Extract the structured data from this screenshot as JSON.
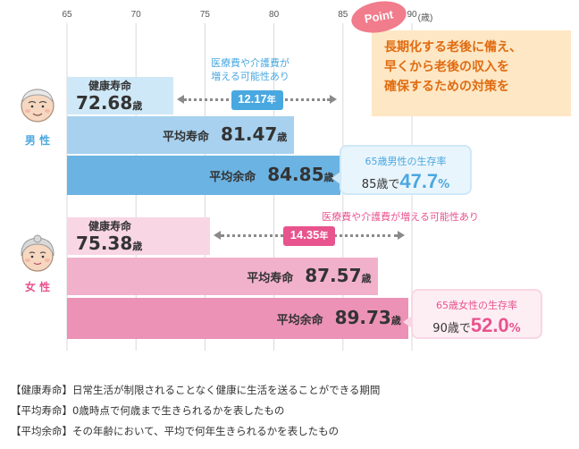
{
  "chart_data": {
    "type": "bar",
    "orientation": "horizontal",
    "x_ticks": [
      "65",
      "70",
      "75",
      "80",
      "85",
      "90"
    ],
    "x_unit": "(歳)",
    "xlim": [
      65,
      90
    ],
    "unit": "歳",
    "groups": [
      {
        "gender": "男 性",
        "bars": [
          {
            "name": "健康寿命",
            "value": 72.68,
            "value_label": "72.68"
          },
          {
            "name": "平均寿命",
            "value": 81.47,
            "value_label": "81.47"
          },
          {
            "name": "平均余命",
            "value": 84.85,
            "value_label": "84.85"
          }
        ],
        "gap_note": [
          "医療費や介護費が",
          "増える可能性あり"
        ],
        "gap": "12.17",
        "gap_unit": "年",
        "survival": {
          "title": "65歳男性の生存率",
          "age_text": "85歳で",
          "rate": "47.7",
          "rate_unit": "%"
        }
      },
      {
        "gender": "女 性",
        "bars": [
          {
            "name": "健康寿命",
            "value": 75.38,
            "value_label": "75.38"
          },
          {
            "name": "平均寿命",
            "value": 87.57,
            "value_label": "87.57"
          },
          {
            "name": "平均余命",
            "value": 89.73,
            "value_label": "89.73"
          }
        ],
        "gap_note": [
          "医療費や介護費が増える可能性あり"
        ],
        "gap": "14.35",
        "gap_unit": "年",
        "survival": {
          "title": "65歳女性の生存率",
          "age_text": "90歳で",
          "rate": "52.0",
          "rate_unit": "%"
        }
      }
    ]
  },
  "point": {
    "tag": "Point",
    "lines": [
      "長期化する老後に備え、",
      "早くから老後の収入を",
      "確保するための対策を"
    ]
  },
  "definitions": [
    {
      "term": "【健康寿命】",
      "text": "日常生活が制限されることなく健康に生活を送ることができる期間"
    },
    {
      "term": "【平均寿命】",
      "text": "0歳時点で何歳まで生きられるかを表したもの"
    },
    {
      "term": "【平均余命】",
      "text": "その年齢において、平均で何年生きられるかを表したもの"
    }
  ],
  "colors": {
    "male": [
      "#cfe8f7",
      "#a7d1ee",
      "#6bb3e3"
    ],
    "female": [
      "#f9d6e4",
      "#f2b1cb",
      "#ec92b7"
    ],
    "male_accent": "#4aa8e0",
    "female_accent": "#e8548d",
    "grid": "#d9d9d9",
    "point_text": "#e06c12",
    "point_bg": "#fde7c4"
  }
}
